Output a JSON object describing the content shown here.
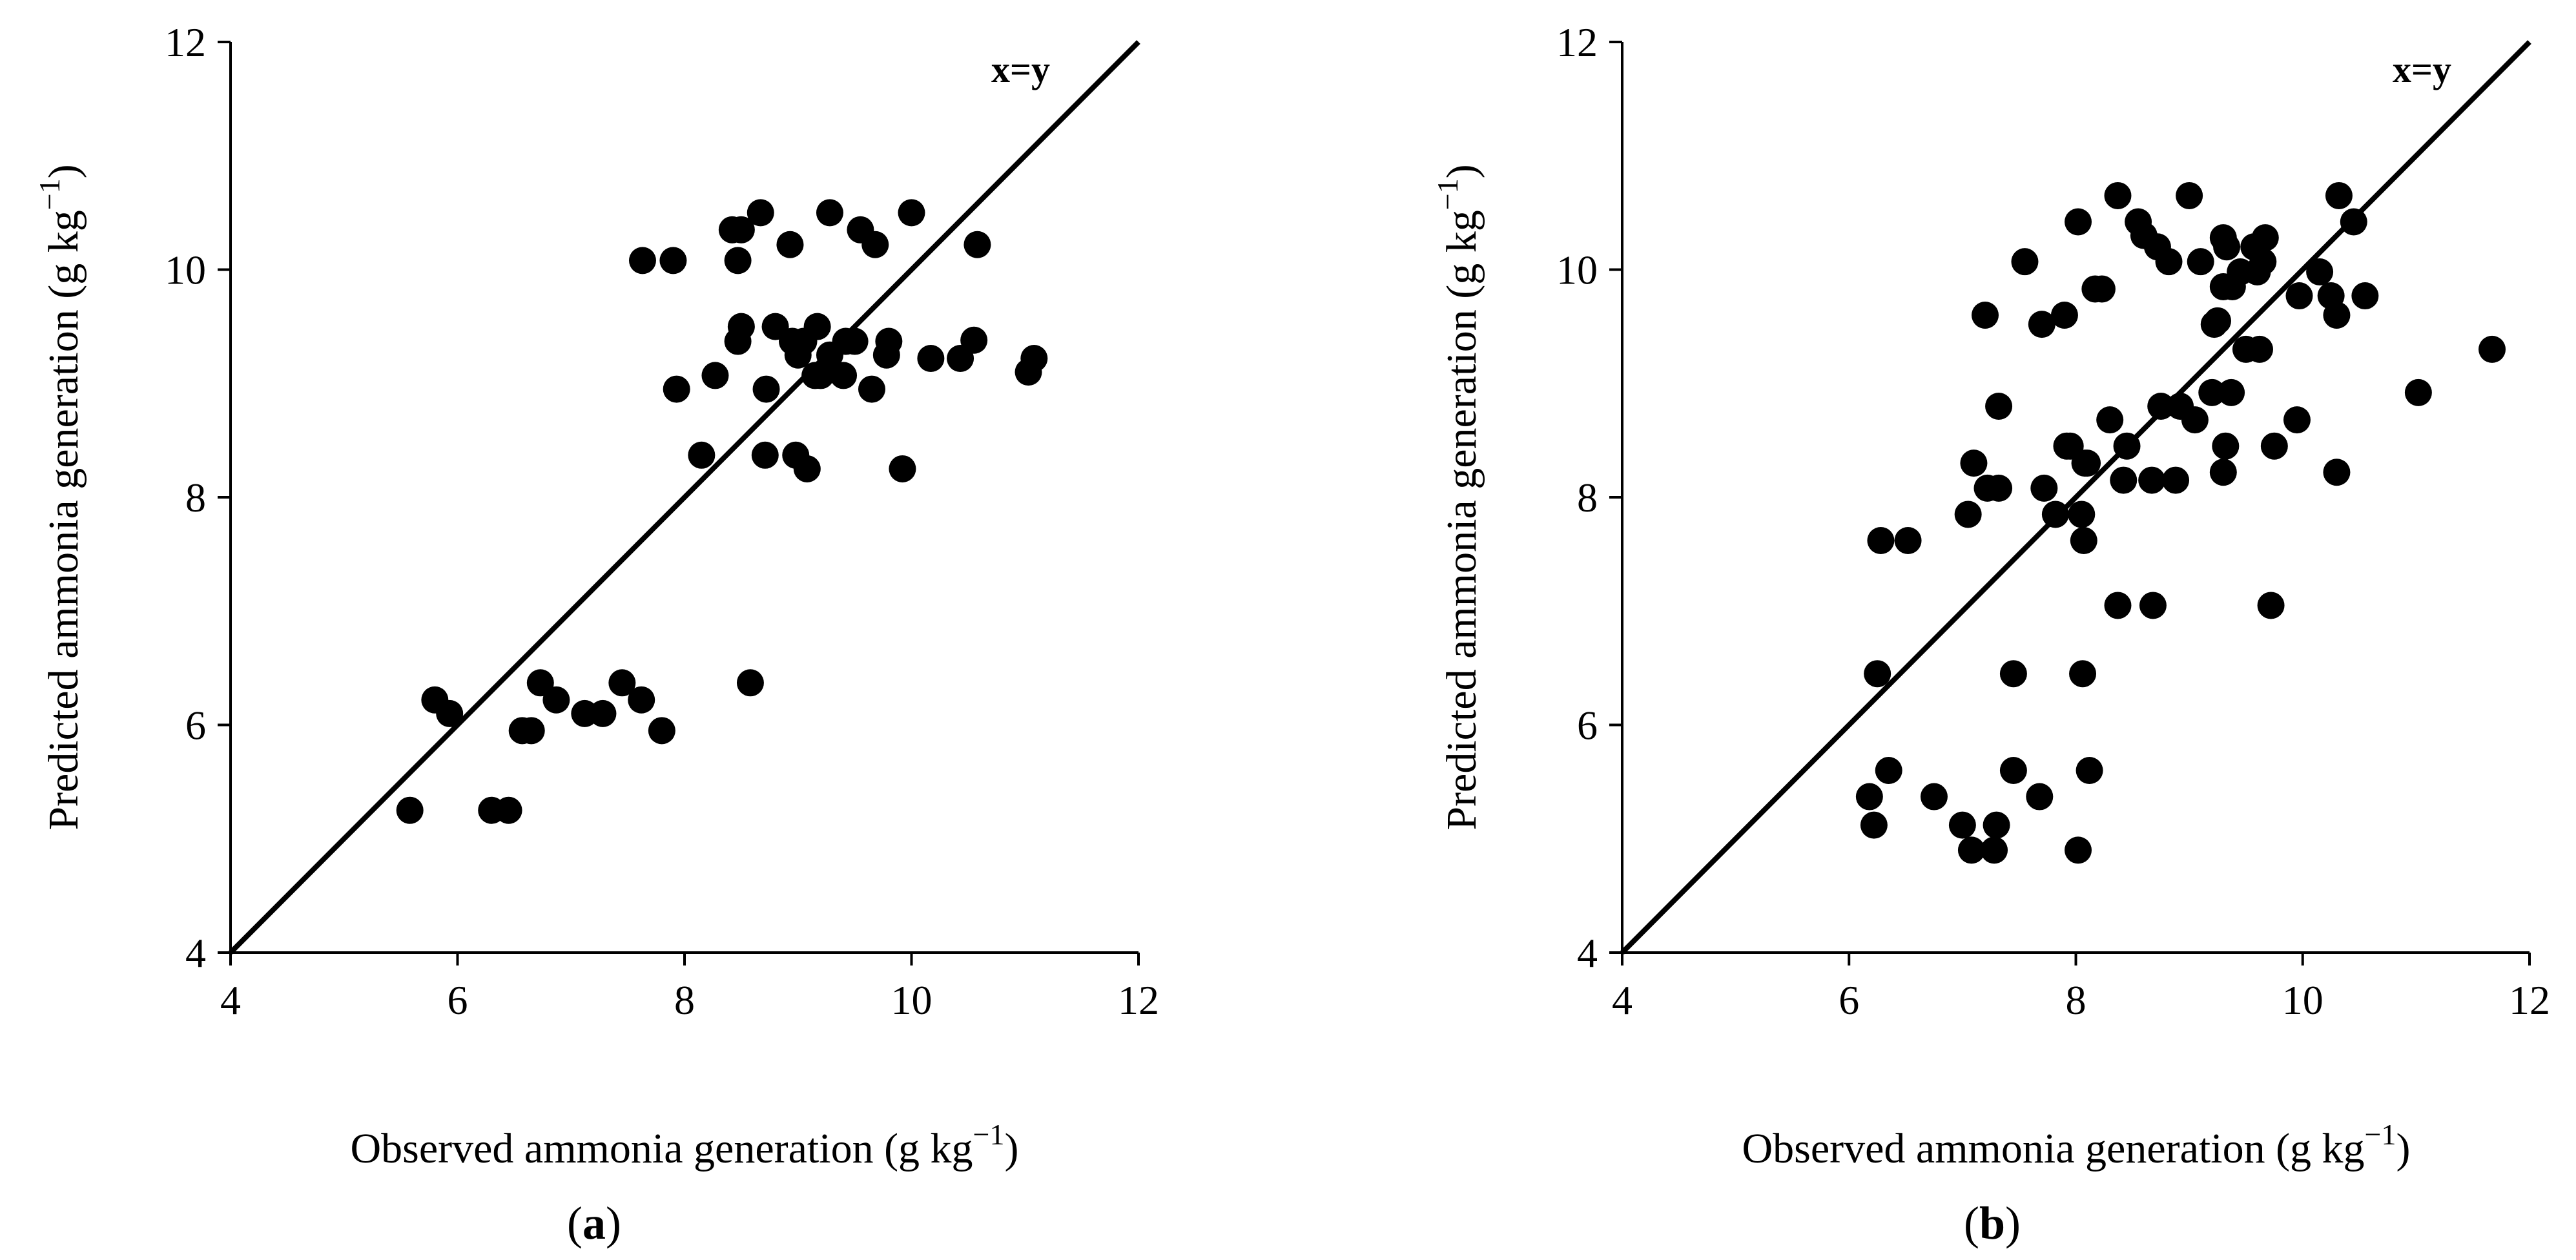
{
  "chart_data": [
    {
      "type": "scatter",
      "panel_label": "a",
      "xlabel": "Observed ammonia generation (g kg",
      "xlabel_sup": "−1",
      "xlabel_close": ")",
      "ylabel": "Predicted ammonia generation (g kg",
      "ylabel_sup": "−1",
      "ylabel_close": ")",
      "xlim": [
        4,
        12
      ],
      "ylim": [
        4,
        12
      ],
      "xticks": [
        4,
        6,
        8,
        10,
        12
      ],
      "yticks": [
        4,
        6,
        8,
        10,
        12
      ],
      "grid": false,
      "reference_line": {
        "label": "x=y",
        "from": [
          4,
          4
        ],
        "to": [
          12,
          12
        ]
      },
      "series": [
        {
          "name": "points",
          "x": [
            5.58,
            5.8,
            5.93,
            6.3,
            6.45,
            6.57,
            6.65,
            6.73,
            6.87,
            7.12,
            7.28,
            7.45,
            7.62,
            7.8,
            7.63,
            7.9,
            7.93,
            8.15,
            8.27,
            8.42,
            8.47,
            8.47,
            8.5,
            8.5,
            8.58,
            8.67,
            8.71,
            8.72,
            8.8,
            8.93,
            8.95,
            8.98,
            9.0,
            9.05,
            9.08,
            9.15,
            9.17,
            9.2,
            9.28,
            9.28,
            9.4,
            9.42,
            9.5,
            9.55,
            9.65,
            9.68,
            9.78,
            9.8,
            9.92,
            10.0,
            10.17,
            10.43,
            10.55,
            10.58,
            11.03,
            11.08
          ],
          "y": [
            5.25,
            6.22,
            6.1,
            5.25,
            5.25,
            5.95,
            5.95,
            6.37,
            6.22,
            6.1,
            6.1,
            6.37,
            6.22,
            5.95,
            10.08,
            10.08,
            8.95,
            8.37,
            9.07,
            10.35,
            10.08,
            9.37,
            10.35,
            9.5,
            6.37,
            10.5,
            8.37,
            8.95,
            9.5,
            10.22,
            9.37,
            8.37,
            9.25,
            9.37,
            8.25,
            9.07,
            9.5,
            9.07,
            9.25,
            10.5,
            9.07,
            9.37,
            9.37,
            10.35,
            8.95,
            10.22,
            9.25,
            9.37,
            8.25,
            10.5,
            9.22,
            9.22,
            9.38,
            10.22,
            9.1,
            9.22
          ]
        }
      ]
    },
    {
      "type": "scatter",
      "panel_label": "b",
      "xlabel": "Observed ammonia generation (g kg",
      "xlabel_sup": "−1",
      "xlabel_close": ")",
      "ylabel": "Predicted ammonia generation (g kg",
      "ylabel_sup": "−1",
      "ylabel_close": ")",
      "xlim": [
        4,
        12
      ],
      "ylim": [
        4,
        12
      ],
      "xticks": [
        4,
        6,
        8,
        10,
        12
      ],
      "yticks": [
        4,
        6,
        8,
        10,
        12
      ],
      "grid": false,
      "reference_line": {
        "label": "x=y",
        "from": [
          4,
          4
        ],
        "to": [
          12,
          12
        ]
      },
      "series": [
        {
          "name": "points",
          "x": [
            6.18,
            6.22,
            6.25,
            6.28,
            6.35,
            6.52,
            6.75,
            7.0,
            7.05,
            7.08,
            7.1,
            7.2,
            7.22,
            7.28,
            7.3,
            7.32,
            7.32,
            7.45,
            7.45,
            7.55,
            7.68,
            7.7,
            7.72,
            7.82,
            7.9,
            7.92,
            7.95,
            8.02,
            8.02,
            8.05,
            8.06,
            8.07,
            8.08,
            8.1,
            8.12,
            8.17,
            8.23,
            8.3,
            8.37,
            8.37,
            8.42,
            8.45,
            8.55,
            8.6,
            8.67,
            8.68,
            8.72,
            8.75,
            8.82,
            8.88,
            8.92,
            9.0,
            9.05,
            9.1,
            9.2,
            9.22,
            9.25,
            9.3,
            9.3,
            9.3,
            9.32,
            9.33,
            9.37,
            9.38,
            9.45,
            9.5,
            9.57,
            9.6,
            9.62,
            9.65,
            9.67,
            9.72,
            9.75,
            9.95,
            9.97,
            10.15,
            10.25,
            10.3,
            10.3,
            10.32,
            10.45,
            10.55,
            11.02,
            11.67
          ],
          "y": [
            5.37,
            5.12,
            6.45,
            7.62,
            5.6,
            7.62,
            5.37,
            5.12,
            7.85,
            4.9,
            8.3,
            9.6,
            8.08,
            4.9,
            5.12,
            8.8,
            8.08,
            6.45,
            5.6,
            10.07,
            5.37,
            9.52,
            8.08,
            7.85,
            9.6,
            8.45,
            8.45,
            10.42,
            4.9,
            7.85,
            6.45,
            7.62,
            8.3,
            8.3,
            5.6,
            9.83,
            9.83,
            8.68,
            7.05,
            10.65,
            8.15,
            8.45,
            10.42,
            10.3,
            8.15,
            7.05,
            10.2,
            8.8,
            10.07,
            8.15,
            8.8,
            10.65,
            8.68,
            10.07,
            8.92,
            9.52,
            9.55,
            10.28,
            8.22,
            9.85,
            8.45,
            10.2,
            8.92,
            9.85,
            9.98,
            9.3,
            10.2,
            9.98,
            9.3,
            10.07,
            10.28,
            7.05,
            8.45,
            8.68,
            9.77,
            9.98,
            9.77,
            8.22,
            9.6,
            10.65,
            10.42,
            9.77,
            8.92,
            9.3
          ]
        }
      ]
    }
  ]
}
